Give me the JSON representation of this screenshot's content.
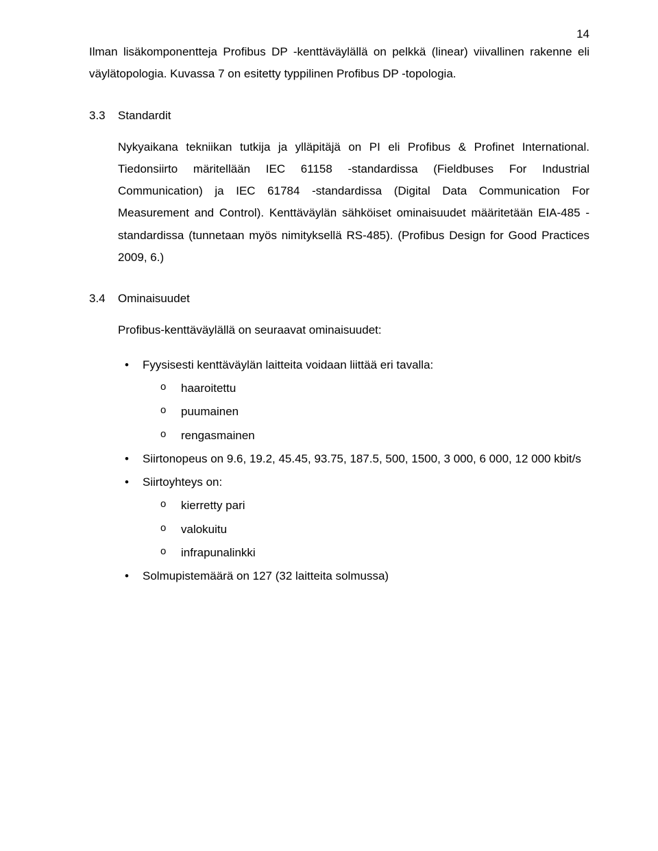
{
  "page_number": "14",
  "intro_paragraph": "Ilman lisäkomponentteja Profibus DP -kenttäväylällä on pelkkä (linear) viivallinen rakenne eli väylätopologia. Kuvassa 7 on esitetty typpilinen Profibus DP -topologia.",
  "section_3_3": {
    "number": "3.3",
    "title": "Standardit",
    "body": "Nykyaikana tekniikan tutkija ja ylläpitäjä on PI eli Profibus & Profinet International. Tiedonsiirto märitellään IEC 61158 -standardissa (Fieldbuses For Industrial Communication) ja IEC 61784 -standardissa (Digital Data Communication For Measurement and Control). Kenttäväylän sähköiset ominaisuudet määritetään EIA-485 -standardissa (tunnetaan myös nimityksellä RS-485). (Profibus Design for Good Practices 2009, 6.)"
  },
  "section_3_4": {
    "number": "3.4",
    "title": "Ominaisuudet",
    "intro": "Profibus-kenttäväylällä on seuraavat ominaisuudet:",
    "bullets": [
      {
        "text": "Fyysisesti kenttäväylän laitteita voidaan liittää eri tavalla:",
        "sub": [
          "haaroitettu",
          "puumainen",
          "rengasmainen"
        ]
      },
      {
        "text": "Siirtonopeus on 9.6, 19.2, 45.45, 93.75, 187.5, 500, 1500, 3 000, 6 000, 12 000 kbit/s"
      },
      {
        "text": "Siirtoyhteys on:",
        "sub": [
          "kierretty pari",
          "valokuitu",
          "infrapunalinkki"
        ]
      },
      {
        "text": "Solmupistemäärä on 127 (32 laitteita solmussa)"
      }
    ]
  }
}
